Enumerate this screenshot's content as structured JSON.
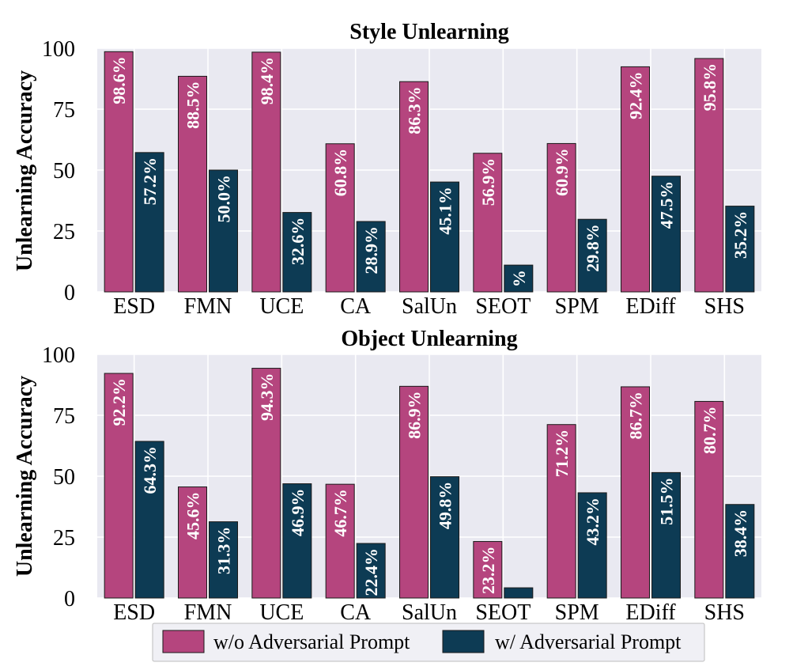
{
  "colors": {
    "plot_bg": "#e9e9f1",
    "grid": "#ffffff",
    "without_adv": "#b5457e",
    "with_adv": "#0d3b54",
    "bar_edge": "#1a1a1a"
  },
  "chart_data": [
    {
      "type": "bar",
      "title": "Style Unlearning",
      "xlabel": "",
      "ylabel": "Unlearning Accuracy",
      "ylim": [
        0,
        100
      ],
      "yticks": [
        0,
        25,
        50,
        75,
        100
      ],
      "grid": true,
      "categories": [
        "ESD",
        "FMN",
        "UCE",
        "CA",
        "SalUn",
        "SEOT",
        "SPM",
        "EDiff",
        "SHS"
      ],
      "series": [
        {
          "name": "w/o Adversarial Prompt",
          "values": [
            98.6,
            88.5,
            98.4,
            60.8,
            86.3,
            56.9,
            60.9,
            92.4,
            95.8
          ],
          "labels": [
            "98.6%",
            "88.5%",
            "98.4%",
            "60.8%",
            "86.3%",
            "56.9%",
            "60.9%",
            "92.4%",
            "95.8%"
          ]
        },
        {
          "name": "w/ Adversarial Prompt",
          "values": [
            57.2,
            50.0,
            32.6,
            28.9,
            45.1,
            11.0,
            29.8,
            47.5,
            35.2
          ],
          "labels": [
            "57.2%",
            "50.0%",
            "32.6%",
            "28.9%",
            "45.1%",
            "%",
            "29.8%",
            "47.5%",
            "35.2%"
          ]
        }
      ]
    },
    {
      "type": "bar",
      "title": "Object Unlearning",
      "xlabel": "",
      "ylabel": "Unlearning Accuracy",
      "ylim": [
        0,
        100
      ],
      "yticks": [
        0,
        25,
        50,
        75,
        100
      ],
      "grid": true,
      "categories": [
        "ESD",
        "FMN",
        "UCE",
        "CA",
        "SalUn",
        "SEOT",
        "SPM",
        "EDiff",
        "SHS"
      ],
      "series": [
        {
          "name": "w/o Adversarial Prompt",
          "values": [
            92.2,
            45.6,
            94.3,
            46.7,
            86.9,
            23.2,
            71.2,
            86.7,
            80.7
          ],
          "labels": [
            "92.2%",
            "45.6%",
            "94.3%",
            "46.7%",
            "86.9%",
            "23.2%",
            "71.2%",
            "86.7%",
            "80.7%"
          ]
        },
        {
          "name": "w/ Adversarial Prompt",
          "values": [
            64.3,
            31.3,
            46.9,
            22.4,
            49.8,
            4.2,
            43.2,
            51.5,
            38.4
          ],
          "labels": [
            "64.3%",
            "31.3%",
            "46.9%",
            "22.4%",
            "49.8%",
            "",
            "43.2%",
            "51.5%",
            "38.4%"
          ]
        }
      ]
    }
  ],
  "legend": {
    "items": [
      "w/o Adversarial Prompt",
      "w/ Adversarial Prompt"
    ],
    "placement": "bottom-center"
  }
}
